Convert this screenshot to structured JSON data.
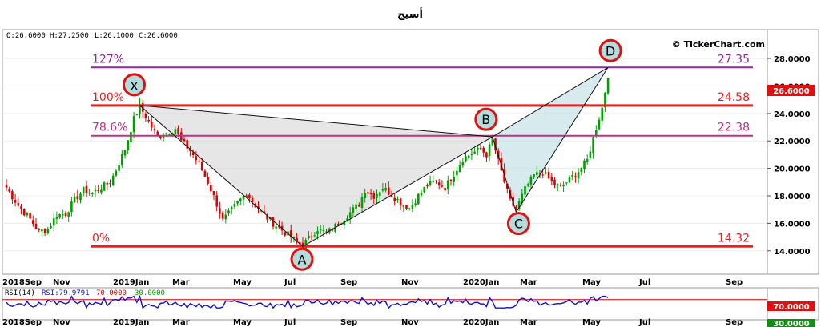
{
  "title": "أسيج",
  "ohlc": {
    "open": "O:26.6000",
    "high": "H:27.2500",
    "low": "L:26.1000",
    "close": "C:26.6000"
  },
  "watermark": "© TickerChart.com",
  "rsi": {
    "label": "RSI(14)",
    "value_text": "RSI:79.9791",
    "upper_text": "70.0000",
    "lower_text": "30.0000",
    "badge_upper": "70.0000",
    "badge_lower": "30.0000",
    "value": 79.9791,
    "upper": 70,
    "lower": 30
  },
  "last_price": "26.6000",
  "colors": {
    "up": "#00a000",
    "down": "#e00000",
    "fib_purple": "#8b2c9c",
    "fib_red": "#e82020",
    "fib_pink": "#c0308a",
    "rsi_line": "#1010d0"
  },
  "chart_data": {
    "type": "candlestick",
    "ylim": [
      12.3,
      30.1
    ],
    "y_ticks": [
      "14.0000",
      "16.0000",
      "18.0000",
      "20.0000",
      "22.0000",
      "24.0000",
      "26.0000",
      "28.0000"
    ],
    "x_labels": [
      "2018Sep",
      "Nov",
      "2019Jan",
      "Mar",
      "May",
      "Jul",
      "Sep",
      "Nov",
      "2020Jan",
      "Mar",
      "May",
      "Jul",
      "Sep"
    ],
    "fib_levels": [
      {
        "pct": "127%",
        "value": 27.35,
        "label": "27.35",
        "color": "#8b2c9c"
      },
      {
        "pct": "100%",
        "value": 24.58,
        "label": "24.58",
        "color": "#e82020"
      },
      {
        "pct": "78.6%",
        "value": 22.38,
        "label": "22.38",
        "color": "#c0308a"
      },
      {
        "pct": "0%",
        "value": 14.32,
        "label": "14.32",
        "color": "#e82020"
      }
    ],
    "pattern_points": [
      {
        "name": "X",
        "label": "x",
        "period": "2019Jan",
        "price": 24.58
      },
      {
        "name": "A",
        "label": "A",
        "period": "2019Aug",
        "price": 14.32
      },
      {
        "name": "B",
        "label": "B",
        "period": "2020Jan",
        "price": 22.3
      },
      {
        "name": "C",
        "label": "C",
        "period": "2020Mar",
        "price": 16.8
      },
      {
        "name": "D",
        "label": "D",
        "period": "2020May",
        "price": 27.35
      }
    ],
    "price_path": [
      [
        0,
        18.6
      ],
      [
        4,
        17.3
      ],
      [
        8,
        16.3
      ],
      [
        11,
        15.4
      ],
      [
        14,
        15.6
      ],
      [
        17,
        16.6
      ],
      [
        20,
        16.7
      ],
      [
        23,
        17.7
      ],
      [
        26,
        18.4
      ],
      [
        29,
        18.2
      ],
      [
        32,
        18.6
      ],
      [
        35,
        19.0
      ],
      [
        37,
        19.9
      ],
      [
        40,
        21.4
      ],
      [
        43,
        23.6
      ],
      [
        45,
        24.5
      ],
      [
        48,
        23.4
      ],
      [
        51,
        22.3
      ],
      [
        54,
        22.6
      ],
      [
        57,
        22.9
      ],
      [
        59,
        22.0
      ],
      [
        62,
        21.3
      ],
      [
        65,
        20.3
      ],
      [
        68,
        19.0
      ],
      [
        71,
        17.4
      ],
      [
        73,
        16.2
      ],
      [
        75,
        16.7
      ],
      [
        78,
        17.5
      ],
      [
        81,
        18.2
      ],
      [
        84,
        17.3
      ],
      [
        87,
        16.6
      ],
      [
        90,
        16.0
      ],
      [
        93,
        15.5
      ],
      [
        96,
        15.0
      ],
      [
        98,
        14.6
      ],
      [
        100,
        14.4
      ],
      [
        102,
        14.9
      ],
      [
        105,
        15.6
      ],
      [
        108,
        15.3
      ],
      [
        110,
        15.6
      ],
      [
        113,
        16.2
      ],
      [
        116,
        16.8
      ],
      [
        119,
        17.4
      ],
      [
        121,
        18.4
      ],
      [
        124,
        18.0
      ],
      [
        127,
        18.6
      ],
      [
        130,
        18.1
      ],
      [
        133,
        17.5
      ],
      [
        136,
        17.1
      ],
      [
        139,
        18.0
      ],
      [
        142,
        18.8
      ],
      [
        145,
        19.0
      ],
      [
        148,
        18.6
      ],
      [
        151,
        19.6
      ],
      [
        154,
        20.7
      ],
      [
        157,
        21.1
      ],
      [
        160,
        21.4
      ],
      [
        162,
        21.0
      ],
      [
        164,
        22.1
      ],
      [
        166,
        20.5
      ],
      [
        168,
        19.0
      ],
      [
        170,
        17.6
      ],
      [
        172,
        17.0
      ],
      [
        175,
        18.5
      ],
      [
        178,
        19.5
      ],
      [
        181,
        19.7
      ],
      [
        184,
        19.0
      ],
      [
        187,
        18.6
      ],
      [
        190,
        19.2
      ],
      [
        193,
        19.8
      ],
      [
        196,
        20.6
      ],
      [
        198,
        22.2
      ],
      [
        200,
        23.7
      ],
      [
        201,
        24.4
      ],
      [
        202,
        25.6
      ],
      [
        203,
        26.6
      ]
    ]
  }
}
